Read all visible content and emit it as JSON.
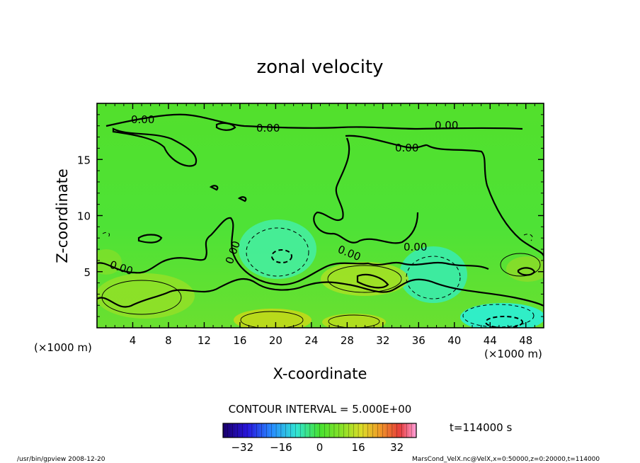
{
  "chart_data": {
    "type": "heatmap",
    "title": "zonal velocity",
    "xlabel": "X-coordinate",
    "ylabel": "Z-coordinate",
    "x_unit": "(×1000 m)",
    "y_unit": "(×1000 m)",
    "xlim": [
      0,
      50
    ],
    "ylim": [
      0,
      20
    ],
    "x_ticks": [
      "4",
      "8",
      "12",
      "16",
      "20",
      "24",
      "28",
      "32",
      "36",
      "40",
      "44",
      "48"
    ],
    "y_ticks": [
      "5",
      "10",
      "15"
    ],
    "contour_labels": [
      "0.00",
      "0.00",
      "0.00",
      "0.00",
      "0.00",
      "0.00",
      "0.00",
      "0.00"
    ],
    "contour_interval": "CONTOUR INTERVAL = 5.000E+00",
    "colorbar": {
      "ticks": [
        "−32",
        "−16",
        "0",
        "16",
        "32"
      ],
      "range": [
        -40,
        40
      ],
      "colormap": "rainbow",
      "low_color": "#1a006e",
      "high_color": "#ff9ad0"
    },
    "time_label": "t=114000 s",
    "grid": false,
    "legend": "colorbar-bottom"
  },
  "footer": {
    "left": "/usr/bin/gpview   2008-12-20",
    "right": "MarsCond_VelX.nc@VelX,x=0:50000,z=0:20000,t=114000"
  }
}
